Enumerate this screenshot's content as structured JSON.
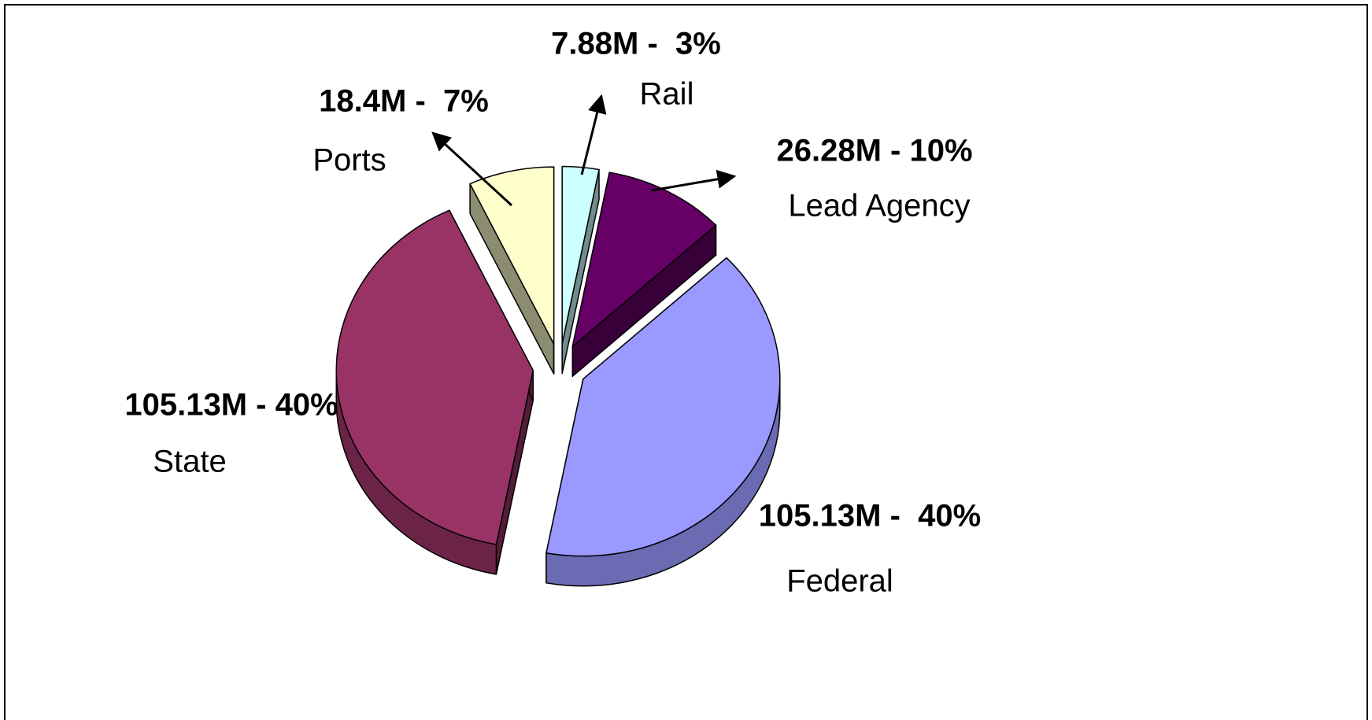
{
  "chart_data": {
    "type": "pie",
    "categories": [
      "Rail",
      "Lead Agency",
      "Federal",
      "State",
      "Ports"
    ],
    "values": [
      7.88,
      26.28,
      105.13,
      105.13,
      18.4
    ],
    "value_labels": [
      "7.88M -  3%",
      "26.28M - 10%",
      "105.13M -  40%",
      "105.13M - 40%",
      "18.4M -  7%"
    ],
    "colors": [
      "#ccffff",
      "#660066",
      "#9999ff",
      "#993366",
      "#ffffcc"
    ]
  }
}
